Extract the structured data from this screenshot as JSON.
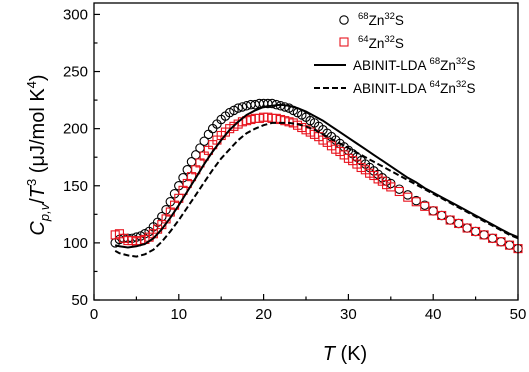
{
  "chart_data": {
    "type": "scatter",
    "xlim": [
      0,
      50
    ],
    "ylim": [
      50,
      310
    ],
    "x_ticks": [
      0,
      10,
      20,
      30,
      40,
      50
    ],
    "y_ticks": [
      50,
      100,
      150,
      200,
      250,
      300
    ],
    "x_tick_labels": [
      "0",
      "10",
      "20",
      "30",
      "40",
      "50"
    ],
    "y_tick_labels": [
      "50",
      "100",
      "150",
      "200",
      "250",
      "300"
    ],
    "xlabel": {
      "symbol": "T",
      "unit": " (K)"
    },
    "ylabel": {
      "c": "C",
      "sub": "p,v",
      "slash": "/",
      "t": "T",
      "sup": "3",
      "unit_open": " (μJ/mol K",
      "unit_sup": "4",
      "unit_close": ")"
    },
    "grid": false,
    "legend_position": "top-right",
    "colors": {
      "zn68": "#000000",
      "zn64": "#e8141e",
      "axis": "#000000"
    },
    "series": [
      {
        "name": {
          "pre": "68",
          "el": "Zn",
          "iso": "32",
          "post": "S"
        },
        "kind": "scatter",
        "marker": "circle",
        "x": [
          2.5,
          3.0,
          3.5,
          4.0,
          4.5,
          5.0,
          5.5,
          6.0,
          6.5,
          7.0,
          7.5,
          8.0,
          8.5,
          9.0,
          9.5,
          10.0,
          10.5,
          11.0,
          11.5,
          12.0,
          12.5,
          13.0,
          13.5,
          14.0,
          14.5,
          15.0,
          15.5,
          16.0,
          16.5,
          17.0,
          17.5,
          18.0,
          18.5,
          19.0,
          19.5,
          20.0,
          20.5,
          21.0,
          21.5,
          22.0,
          22.5,
          23.0,
          23.5,
          24.0,
          24.5,
          25.0,
          25.5,
          26.0,
          26.5,
          27.0,
          27.5,
          28.0,
          28.5,
          29.0,
          29.5,
          30.0,
          30.5,
          31.0,
          31.5,
          32.0,
          32.5,
          33.0,
          33.5,
          34.0,
          34.5,
          35.0,
          36.0,
          37.0,
          38.0,
          39.0,
          40.0,
          41.0,
          42.0,
          43.0,
          44.0,
          45.0,
          46.0,
          47.0,
          48.0,
          49.0,
          50.0
        ],
        "y": [
          100,
          103,
          104,
          104,
          104,
          105,
          106,
          108,
          110,
          114,
          118,
          123,
          129,
          136,
          143,
          150,
          157,
          164,
          171,
          177,
          183,
          189,
          195,
          200,
          204,
          208,
          211,
          214,
          216,
          218,
          219,
          220,
          221,
          221,
          222,
          222,
          222,
          222,
          221,
          220,
          219,
          218,
          216,
          214,
          212,
          210,
          207,
          205,
          202,
          199,
          196,
          193,
          190,
          187,
          184,
          181,
          178,
          175,
          172,
          169,
          166,
          163,
          160,
          157,
          154,
          152,
          147,
          142,
          137,
          133,
          128,
          124,
          120,
          117,
          113,
          110,
          107,
          104,
          101,
          98,
          95
        ]
      },
      {
        "name": {
          "pre": "64",
          "el": "Zn",
          "iso": "32",
          "post": "S"
        },
        "kind": "scatter",
        "marker": "square",
        "x": [
          2.5,
          3.0,
          3.5,
          4.0,
          4.5,
          5.0,
          5.5,
          6.0,
          6.5,
          7.0,
          7.5,
          8.0,
          8.5,
          9.0,
          9.5,
          10.0,
          10.5,
          11.0,
          11.5,
          12.0,
          12.5,
          13.0,
          13.5,
          14.0,
          14.5,
          15.0,
          15.5,
          16.0,
          16.5,
          17.0,
          17.5,
          18.0,
          18.5,
          19.0,
          19.5,
          20.0,
          20.5,
          21.0,
          21.5,
          22.0,
          22.5,
          23.0,
          23.5,
          24.0,
          24.5,
          25.0,
          25.5,
          26.0,
          26.5,
          27.0,
          27.5,
          28.0,
          28.5,
          29.0,
          29.5,
          30.0,
          30.5,
          31.0,
          31.5,
          32.0,
          32.5,
          33.0,
          33.5,
          34.0,
          34.5,
          35.0,
          36.0,
          37.0,
          38.0,
          39.0,
          40.0,
          41.0,
          42.0,
          43.0,
          44.0,
          45.0,
          46.0,
          47.0,
          48.0,
          49.0,
          50.0
        ],
        "y": [
          107,
          108,
          104,
          102,
          102,
          101,
          102,
          103,
          105,
          108,
          112,
          116,
          121,
          127,
          133,
          139,
          146,
          152,
          158,
          164,
          170,
          176,
          181,
          186,
          190,
          194,
          197,
          200,
          202,
          204,
          206,
          207,
          208,
          209,
          209,
          210,
          210,
          209,
          209,
          208,
          207,
          206,
          205,
          203,
          201,
          199,
          197,
          195,
          193,
          190,
          188,
          185,
          182,
          180,
          177,
          174,
          172,
          169,
          166,
          164,
          161,
          159,
          156,
          154,
          151,
          149,
          145,
          140,
          136,
          132,
          128,
          124,
          120,
          117,
          113,
          110,
          107,
          104,
          101,
          98,
          95
        ]
      },
      {
        "name": {
          "pre": "ABINIT-LDA ",
          "el": "",
          "iso": "",
          "post": "",
          "text_a": "68",
          "text_b": "Zn",
          "text_c": "32",
          "text_d": "S"
        },
        "kind": "line",
        "dash": "solid",
        "x": [
          2.5,
          3,
          4,
          5,
          6,
          7,
          8,
          9,
          10,
          11,
          12,
          13,
          14,
          15,
          16,
          17,
          18,
          19,
          20,
          21,
          22,
          23,
          24,
          25,
          26,
          27,
          28,
          29,
          30,
          31,
          32,
          33,
          34,
          35,
          36,
          37,
          38,
          39,
          40,
          41,
          42,
          43,
          44,
          45,
          46,
          47,
          48,
          49,
          50
        ],
        "y": [
          98,
          97,
          96,
          97,
          99,
          104,
          112,
          122,
          133,
          145,
          157,
          169,
          180,
          190,
          199,
          206,
          212,
          216,
          219,
          220,
          221,
          220,
          218,
          215,
          211,
          207,
          202,
          197,
          192,
          187,
          182,
          177,
          172,
          167,
          162,
          157,
          153,
          148,
          144,
          140,
          136,
          132,
          128,
          124,
          120,
          116,
          112,
          108,
          105
        ]
      },
      {
        "name": {
          "pre": "ABINIT-LDA ",
          "el": "",
          "iso": "",
          "post": "",
          "text_a": "64",
          "text_b": "Zn",
          "text_c": "32",
          "text_d": "S"
        },
        "kind": "line",
        "dash": "dashed",
        "x": [
          2.5,
          3,
          4,
          5,
          6,
          7,
          8,
          9,
          10,
          11,
          12,
          13,
          14,
          15,
          16,
          17,
          18,
          19,
          20,
          21,
          22,
          23,
          24,
          25,
          26,
          27,
          28,
          29,
          30,
          31,
          32,
          33,
          34,
          35,
          36,
          37,
          38,
          39,
          40,
          41,
          42,
          43,
          44,
          45,
          46,
          47,
          48,
          49,
          50
        ],
        "y": [
          93,
          91,
          89,
          88,
          90,
          94,
          101,
          110,
          120,
          131,
          142,
          153,
          164,
          174,
          182,
          190,
          196,
          200,
          203,
          205,
          205,
          205,
          204,
          202,
          199,
          195,
          191,
          187,
          183,
          179,
          175,
          171,
          167,
          163,
          159,
          155,
          151,
          147,
          143,
          139,
          135,
          131,
          127,
          123,
          119,
          115,
          111,
          107,
          104
        ]
      }
    ]
  }
}
